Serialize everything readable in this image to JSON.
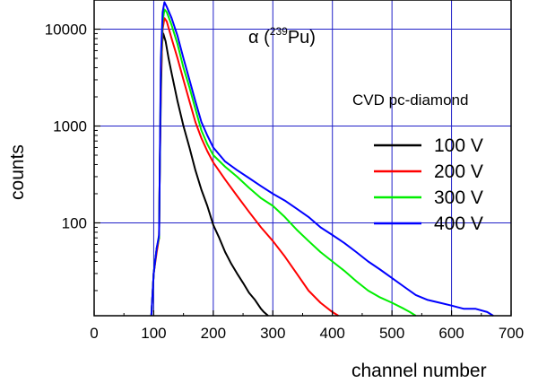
{
  "chart_data": {
    "type": "line",
    "xlabel": "channel number",
    "ylabel": "counts",
    "x_scale": "linear",
    "y_scale": "log",
    "xlim": [
      0,
      700
    ],
    "ylim": [
      11,
      20000
    ],
    "x_ticks": [
      "0",
      "100",
      "200",
      "300",
      "400",
      "500",
      "600",
      "700"
    ],
    "y_ticks": [
      "100",
      "1000",
      "10000"
    ],
    "grid": true,
    "annotation_alpha": "α (",
    "annotation_isotope_mass": "239",
    "annotation_isotope": "Pu)",
    "annotation_sample": "CVD pc-diamond",
    "legend_position": "right-center",
    "series": [
      {
        "name": "100 V",
        "color": "#000000",
        "points": [
          [
            96,
            11
          ],
          [
            100,
            30
          ],
          [
            105,
            55
          ],
          [
            109,
            70
          ],
          [
            110,
            300
          ],
          [
            112,
            2000
          ],
          [
            114,
            7000
          ],
          [
            116,
            9000
          ],
          [
            120,
            7500
          ],
          [
            125,
            5000
          ],
          [
            130,
            3500
          ],
          [
            140,
            1800
          ],
          [
            150,
            1000
          ],
          [
            160,
            600
          ],
          [
            170,
            350
          ],
          [
            180,
            220
          ],
          [
            190,
            150
          ],
          [
            200,
            95
          ],
          [
            210,
            70
          ],
          [
            220,
            50
          ],
          [
            230,
            38
          ],
          [
            240,
            30
          ],
          [
            250,
            24
          ],
          [
            260,
            19
          ],
          [
            270,
            16
          ],
          [
            280,
            13
          ],
          [
            285,
            12
          ],
          [
            292,
            11
          ]
        ]
      },
      {
        "name": "200 V",
        "color": "#ff0000",
        "points": [
          [
            96,
            11
          ],
          [
            100,
            30
          ],
          [
            105,
            50
          ],
          [
            109,
            70
          ],
          [
            110,
            300
          ],
          [
            112,
            3000
          ],
          [
            115,
            10000
          ],
          [
            118,
            13000
          ],
          [
            122,
            12000
          ],
          [
            130,
            8000
          ],
          [
            140,
            5000
          ],
          [
            150,
            3000
          ],
          [
            160,
            1800
          ],
          [
            170,
            1100
          ],
          [
            180,
            750
          ],
          [
            190,
            550
          ],
          [
            200,
            420
          ],
          [
            220,
            280
          ],
          [
            240,
            190
          ],
          [
            260,
            130
          ],
          [
            280,
            90
          ],
          [
            300,
            65
          ],
          [
            320,
            45
          ],
          [
            340,
            30
          ],
          [
            360,
            20
          ],
          [
            380,
            15
          ],
          [
            400,
            12
          ],
          [
            410,
            11
          ]
        ]
      },
      {
        "name": "300 V",
        "color": "#00ee00",
        "points": [
          [
            96,
            11
          ],
          [
            100,
            30
          ],
          [
            105,
            55
          ],
          [
            109,
            70
          ],
          [
            110,
            300
          ],
          [
            112,
            4000
          ],
          [
            115,
            12000
          ],
          [
            118,
            16000
          ],
          [
            122,
            15000
          ],
          [
            130,
            11000
          ],
          [
            140,
            7000
          ],
          [
            150,
            4000
          ],
          [
            160,
            2500
          ],
          [
            170,
            1500
          ],
          [
            180,
            900
          ],
          [
            190,
            650
          ],
          [
            200,
            500
          ],
          [
            220,
            380
          ],
          [
            240,
            300
          ],
          [
            260,
            230
          ],
          [
            280,
            180
          ],
          [
            300,
            150
          ],
          [
            320,
            115
          ],
          [
            340,
            85
          ],
          [
            360,
            65
          ],
          [
            380,
            50
          ],
          [
            400,
            40
          ],
          [
            420,
            32
          ],
          [
            440,
            25
          ],
          [
            460,
            20
          ],
          [
            480,
            17
          ],
          [
            500,
            15
          ],
          [
            520,
            13
          ],
          [
            530,
            12
          ],
          [
            540,
            11
          ]
        ]
      },
      {
        "name": "400 V",
        "color": "#0000ff",
        "points": [
          [
            96,
            11
          ],
          [
            100,
            30
          ],
          [
            105,
            55
          ],
          [
            109,
            75
          ],
          [
            110,
            300
          ],
          [
            112,
            5000
          ],
          [
            115,
            15000
          ],
          [
            118,
            19000
          ],
          [
            122,
            17000
          ],
          [
            130,
            13000
          ],
          [
            140,
            8500
          ],
          [
            150,
            5000
          ],
          [
            160,
            3000
          ],
          [
            170,
            1800
          ],
          [
            180,
            1100
          ],
          [
            190,
            800
          ],
          [
            200,
            600
          ],
          [
            220,
            430
          ],
          [
            240,
            350
          ],
          [
            260,
            290
          ],
          [
            280,
            240
          ],
          [
            300,
            200
          ],
          [
            320,
            170
          ],
          [
            340,
            140
          ],
          [
            360,
            115
          ],
          [
            380,
            90
          ],
          [
            400,
            75
          ],
          [
            420,
            62
          ],
          [
            440,
            50
          ],
          [
            460,
            40
          ],
          [
            480,
            33
          ],
          [
            500,
            27
          ],
          [
            520,
            22
          ],
          [
            540,
            18
          ],
          [
            560,
            16
          ],
          [
            580,
            15
          ],
          [
            600,
            14
          ],
          [
            620,
            13
          ],
          [
            640,
            13
          ],
          [
            660,
            12
          ],
          [
            670,
            11
          ]
        ]
      }
    ]
  }
}
